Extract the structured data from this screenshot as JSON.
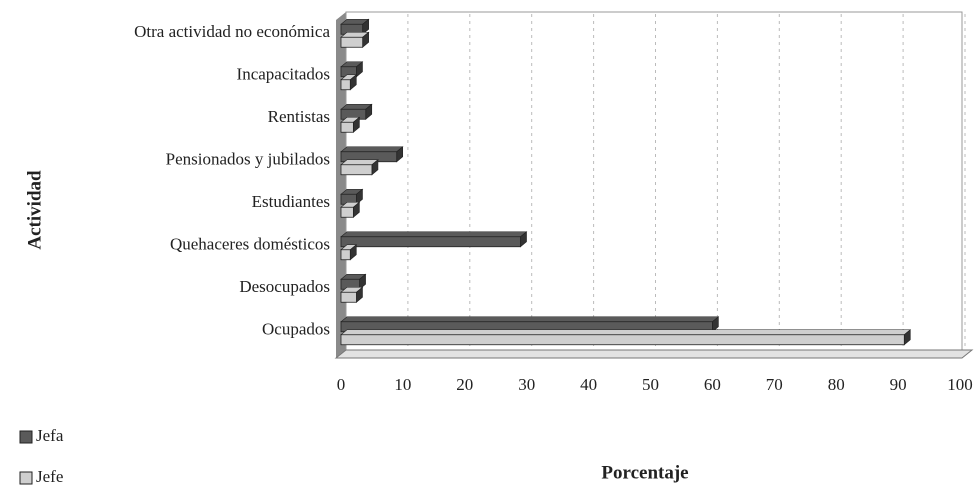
{
  "chart_data": {
    "type": "bar",
    "orientation": "horizontal",
    "x_label": "Porcentaje",
    "y_label": "Actividad",
    "categories": [
      "Ocupados",
      "Desocupados",
      "Quehaceres domésticos",
      "Estudiantes",
      "Pensionados y jubilados",
      "Rentistas",
      "Incapacitados",
      "Otra actividad no económica"
    ],
    "series": [
      {
        "name": "Jefa",
        "color": "#5a5a5a",
        "values": [
          60,
          3,
          29,
          2.5,
          9,
          4,
          2.5,
          3.5
        ]
      },
      {
        "name": "Jefe",
        "color": "#cfcfcf",
        "values": [
          91,
          2.5,
          1.5,
          2,
          5,
          2,
          1.5,
          3.5
        ]
      }
    ],
    "xlim": [
      0,
      100
    ],
    "xticks": [
      0,
      10,
      20,
      30,
      40,
      50,
      60,
      70,
      80,
      90,
      100
    ],
    "grid": true,
    "legend": "bottom-left"
  }
}
